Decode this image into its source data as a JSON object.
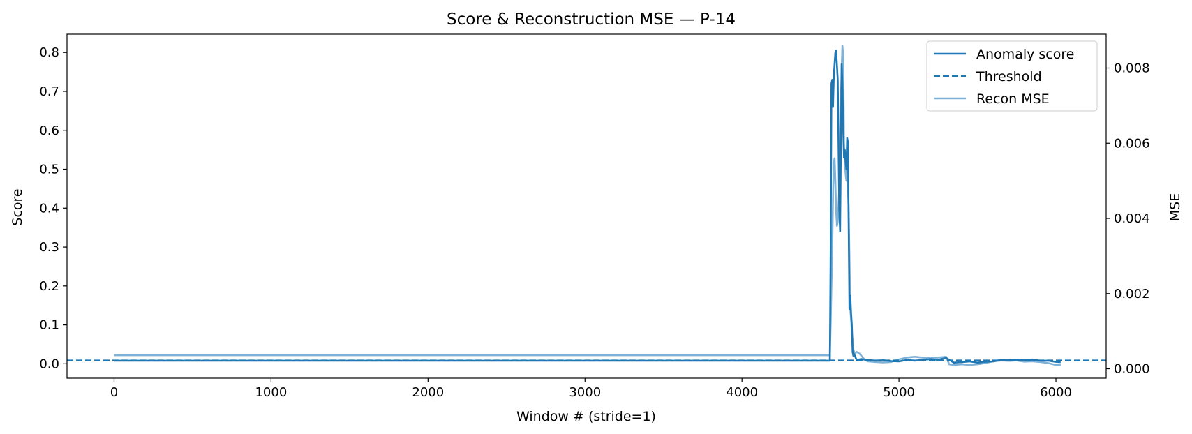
{
  "chart_data": {
    "type": "line",
    "title": "Score & Reconstruction MSE — P-14",
    "xlabel": "Window # (stride=1)",
    "ylabel": "Score",
    "y2label": "MSE",
    "xlim": [
      -300,
      6320
    ],
    "ylim": [
      -0.037,
      0.847
    ],
    "y2lim": [
      -0.00025,
      0.0089
    ],
    "xticks": [
      0,
      1000,
      2000,
      3000,
      4000,
      5000,
      6000
    ],
    "xtick_labels": [
      "0",
      "1000",
      "2000",
      "3000",
      "4000",
      "5000",
      "6000"
    ],
    "yticks": [
      0.0,
      0.1,
      0.2,
      0.3,
      0.4,
      0.5,
      0.6,
      0.7,
      0.8
    ],
    "ytick_labels": [
      "0.0",
      "0.1",
      "0.2",
      "0.3",
      "0.4",
      "0.5",
      "0.6",
      "0.7",
      "0.8"
    ],
    "y2ticks": [
      0.0,
      0.002,
      0.004,
      0.006,
      0.008
    ],
    "y2tick_labels": [
      "0.000",
      "0.002",
      "0.004",
      "0.006",
      "0.008"
    ],
    "grid": false,
    "legend_position": "top-right",
    "colors": {
      "score": "#1f77b4",
      "threshold": "#1f77b4",
      "mse": "#7fb2d8"
    },
    "series": [
      {
        "name": "Anomaly score",
        "axis": "left",
        "style": "solid",
        "x": [
          0,
          4560,
          4565,
          4570,
          4575,
          4580,
          4585,
          4590,
          4595,
          4600,
          4610,
          4620,
          4625,
          4630,
          4635,
          4640,
          4645,
          4650,
          4655,
          4660,
          4665,
          4670,
          4675,
          4680,
          4685,
          4690,
          4695,
          4700,
          4705,
          4710,
          4715,
          4720,
          4730,
          4760,
          4800,
          4850,
          4900,
          4950,
          5000,
          5050,
          5100,
          5150,
          5200,
          5250,
          5300,
          5350,
          5400,
          5450,
          5500,
          5550,
          5600,
          5650,
          5700,
          5750,
          5800,
          5850,
          5900,
          5950,
          6000,
          6030
        ],
        "y": [
          0.008,
          0.008,
          0.3,
          0.72,
          0.73,
          0.66,
          0.74,
          0.77,
          0.8,
          0.805,
          0.73,
          0.4,
          0.34,
          0.55,
          0.77,
          0.72,
          0.6,
          0.53,
          0.55,
          0.52,
          0.5,
          0.58,
          0.57,
          0.35,
          0.14,
          0.175,
          0.13,
          0.1,
          0.03,
          0.02,
          0.025,
          0.02,
          0.01,
          0.012,
          0.01,
          0.008,
          0.009,
          0.007,
          0.006,
          0.01,
          0.008,
          0.01,
          0.012,
          0.01,
          0.015,
          0.003,
          0.004,
          0.006,
          0.003,
          0.005,
          0.006,
          0.01,
          0.009,
          0.01,
          0.009,
          0.011,
          0.008,
          0.008,
          0.005,
          0.004
        ]
      },
      {
        "name": "Threshold",
        "axis": "left",
        "style": "dashed",
        "value": 0.0085
      },
      {
        "name": "Recon MSE",
        "axis": "right",
        "style": "solid",
        "x": [
          0,
          4560,
          4565,
          4575,
          4580,
          4585,
          4590,
          4595,
          4600,
          4605,
          4610,
          4620,
          4630,
          4640,
          4645,
          4650,
          4655,
          4660,
          4665,
          4670,
          4680,
          4690,
          4700,
          4710,
          4720,
          4730,
          4750,
          4760,
          4780,
          4800,
          4850,
          4900,
          4950,
          5000,
          5050,
          5100,
          5150,
          5200,
          5250,
          5300,
          5320,
          5350,
          5400,
          5450,
          5500,
          5550,
          5600,
          5650,
          5700,
          5750,
          5800,
          5850,
          5900,
          5950,
          6000,
          6030
        ],
        "y": [
          0.00036,
          0.00036,
          0.0012,
          0.0032,
          0.0045,
          0.0055,
          0.0056,
          0.005,
          0.0042,
          0.0038,
          0.0039,
          0.0048,
          0.0072,
          0.0086,
          0.0083,
          0.006,
          0.0055,
          0.0052,
          0.005,
          0.0054,
          0.0042,
          0.0016,
          0.001,
          0.0005,
          0.0004,
          0.00045,
          0.0004,
          0.00035,
          0.00025,
          0.0002,
          0.00018,
          0.00017,
          0.00018,
          0.00025,
          0.0003,
          0.00032,
          0.0003,
          0.00028,
          0.0003,
          0.00032,
          0.00012,
          0.0001,
          0.00012,
          0.0001,
          0.00012,
          0.00015,
          0.0002,
          0.00022,
          0.00021,
          0.00022,
          0.00019,
          0.0002,
          0.00018,
          0.00015,
          0.0001,
          0.0001
        ]
      }
    ]
  }
}
